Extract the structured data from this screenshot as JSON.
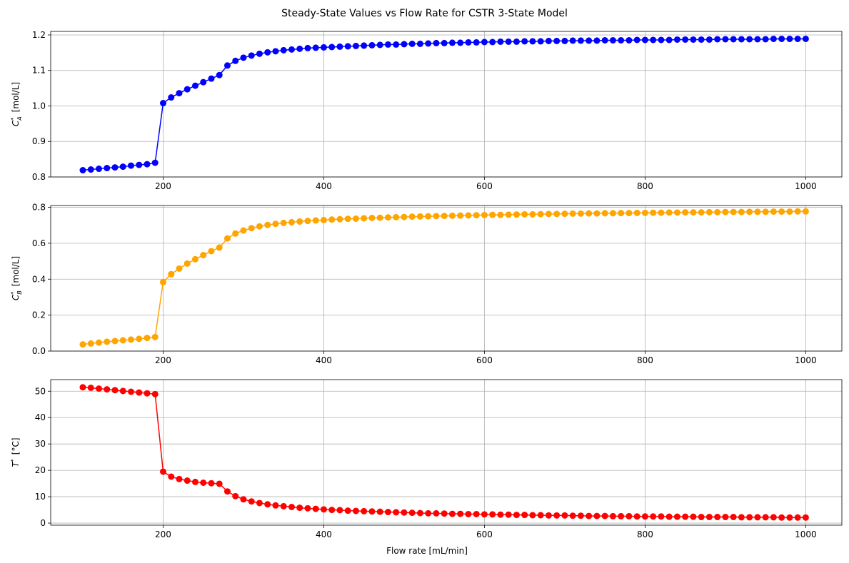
{
  "chart_data": {
    "title": "Steady-State Values vs Flow Rate for CSTR 3-State Model",
    "xlabel": "Flow rate [mL/min]",
    "x": [
      100,
      110,
      120,
      130,
      140,
      150,
      160,
      170,
      180,
      190,
      200,
      210,
      220,
      230,
      240,
      250,
      260,
      270,
      280,
      290,
      300,
      310,
      320,
      330,
      340,
      350,
      360,
      370,
      380,
      390,
      400,
      410,
      420,
      430,
      440,
      450,
      460,
      470,
      480,
      490,
      500,
      510,
      520,
      530,
      540,
      550,
      560,
      570,
      580,
      590,
      600,
      610,
      620,
      630,
      640,
      650,
      660,
      670,
      680,
      690,
      700,
      710,
      720,
      730,
      740,
      750,
      760,
      770,
      780,
      790,
      800,
      810,
      820,
      830,
      840,
      850,
      860,
      870,
      880,
      890,
      900,
      910,
      920,
      930,
      940,
      950,
      960,
      970,
      980,
      990,
      1000
    ],
    "xlim": [
      60,
      1045
    ],
    "xticks": [
      200,
      400,
      600,
      800,
      1000
    ],
    "subplots": [
      {
        "type": "line",
        "ylabel_main": "C",
        "ylabel_sub": "A",
        "ylabel_sup": "*",
        "ylabel_unit": "[mol/L]",
        "color": "#0000ff",
        "ylim": [
          0.8,
          1.21
        ],
        "yticks": [
          0.8,
          0.9,
          1.0,
          1.1,
          1.2
        ],
        "tick_decimals": 1,
        "values": [
          0.819,
          0.821,
          0.823,
          0.825,
          0.827,
          0.829,
          0.832,
          0.834,
          0.836,
          0.84,
          1.008,
          1.024,
          1.036,
          1.047,
          1.057,
          1.067,
          1.077,
          1.087,
          1.114,
          1.127,
          1.136,
          1.142,
          1.147,
          1.151,
          1.154,
          1.157,
          1.159,
          1.161,
          1.163,
          1.164,
          1.165,
          1.166,
          1.167,
          1.168,
          1.169,
          1.17,
          1.171,
          1.172,
          1.173,
          1.173,
          1.174,
          1.175,
          1.175,
          1.176,
          1.177,
          1.177,
          1.178,
          1.178,
          1.179,
          1.179,
          1.18,
          1.18,
          1.181,
          1.181,
          1.181,
          1.182,
          1.182,
          1.182,
          1.183,
          1.183,
          1.183,
          1.184,
          1.184,
          1.184,
          1.184,
          1.185,
          1.185,
          1.185,
          1.185,
          1.186,
          1.186,
          1.186,
          1.186,
          1.186,
          1.187,
          1.187,
          1.187,
          1.187,
          1.187,
          1.188,
          1.188,
          1.188,
          1.188,
          1.188,
          1.188,
          1.188,
          1.189,
          1.189,
          1.189,
          1.189,
          1.189
        ]
      },
      {
        "type": "line",
        "ylabel_main": "C",
        "ylabel_sub": "B",
        "ylabel_sup": "*",
        "ylabel_unit": "[mol/L]",
        "color": "#ffa500",
        "ylim": [
          0.0,
          0.81
        ],
        "yticks": [
          0.0,
          0.2,
          0.4,
          0.6,
          0.8
        ],
        "tick_decimals": 1,
        "values": [
          0.037,
          0.042,
          0.047,
          0.052,
          0.056,
          0.06,
          0.064,
          0.068,
          0.073,
          0.078,
          0.384,
          0.428,
          0.459,
          0.487,
          0.511,
          0.534,
          0.556,
          0.576,
          0.627,
          0.654,
          0.671,
          0.684,
          0.694,
          0.702,
          0.708,
          0.713,
          0.717,
          0.721,
          0.724,
          0.727,
          0.729,
          0.732,
          0.734,
          0.736,
          0.737,
          0.739,
          0.741,
          0.742,
          0.744,
          0.745,
          0.746,
          0.748,
          0.749,
          0.75,
          0.751,
          0.752,
          0.753,
          0.754,
          0.755,
          0.756,
          0.757,
          0.758,
          0.758,
          0.759,
          0.76,
          0.761,
          0.761,
          0.762,
          0.763,
          0.763,
          0.764,
          0.765,
          0.765,
          0.766,
          0.766,
          0.767,
          0.767,
          0.768,
          0.768,
          0.769,
          0.769,
          0.77,
          0.77,
          0.771,
          0.771,
          0.772,
          0.772,
          0.772,
          0.773,
          0.773,
          0.774,
          0.774,
          0.774,
          0.775,
          0.775,
          0.775,
          0.776,
          0.776,
          0.776,
          0.777,
          0.777
        ]
      },
      {
        "type": "line",
        "ylabel_main": "T",
        "ylabel_sub": "",
        "ylabel_sup": "*",
        "ylabel_unit": "[°C]",
        "color": "#ff0000",
        "ylim": [
          -0.8,
          54.4
        ],
        "yticks": [
          0,
          10,
          20,
          30,
          40,
          50
        ],
        "tick_decimals": 0,
        "values": [
          51.5,
          51.3,
          51.0,
          50.7,
          50.4,
          50.1,
          49.8,
          49.5,
          49.2,
          48.9,
          19.5,
          17.6,
          16.7,
          16.1,
          15.6,
          15.3,
          15.1,
          14.9,
          12.0,
          10.2,
          9.0,
          8.2,
          7.6,
          7.1,
          6.7,
          6.4,
          6.1,
          5.8,
          5.6,
          5.4,
          5.2,
          5.0,
          4.9,
          4.7,
          4.6,
          4.5,
          4.4,
          4.3,
          4.2,
          4.1,
          4.0,
          3.9,
          3.8,
          3.7,
          3.7,
          3.6,
          3.5,
          3.5,
          3.4,
          3.4,
          3.3,
          3.3,
          3.2,
          3.2,
          3.1,
          3.1,
          3.0,
          3.0,
          2.9,
          2.9,
          2.9,
          2.8,
          2.8,
          2.7,
          2.7,
          2.7,
          2.6,
          2.6,
          2.6,
          2.5,
          2.5,
          2.5,
          2.5,
          2.4,
          2.4,
          2.4,
          2.4,
          2.3,
          2.3,
          2.3,
          2.3,
          2.3,
          2.2,
          2.2,
          2.2,
          2.2,
          2.2,
          2.1,
          2.1,
          2.1,
          2.1
        ]
      }
    ]
  }
}
